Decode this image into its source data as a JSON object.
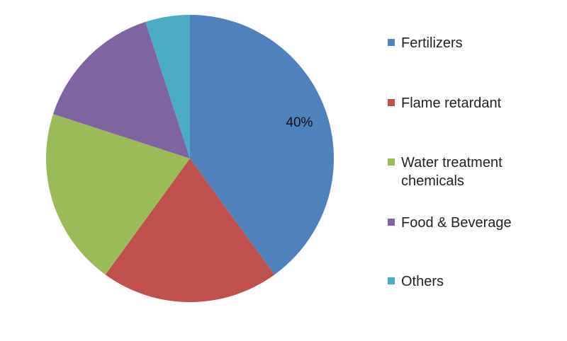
{
  "chart_data": {
    "type": "pie",
    "categories": [
      "Fertilizers",
      "Flame retardant",
      "Water treatment chemicals",
      "Food & Beverage",
      "Others"
    ],
    "values": [
      40,
      20,
      20,
      15,
      5
    ],
    "value_labels": [
      "40%",
      null,
      null,
      null,
      null
    ],
    "colors": [
      "#4f81bd",
      "#c0504d",
      "#9bbb59",
      "#8064a2",
      "#4bacc6"
    ]
  }
}
